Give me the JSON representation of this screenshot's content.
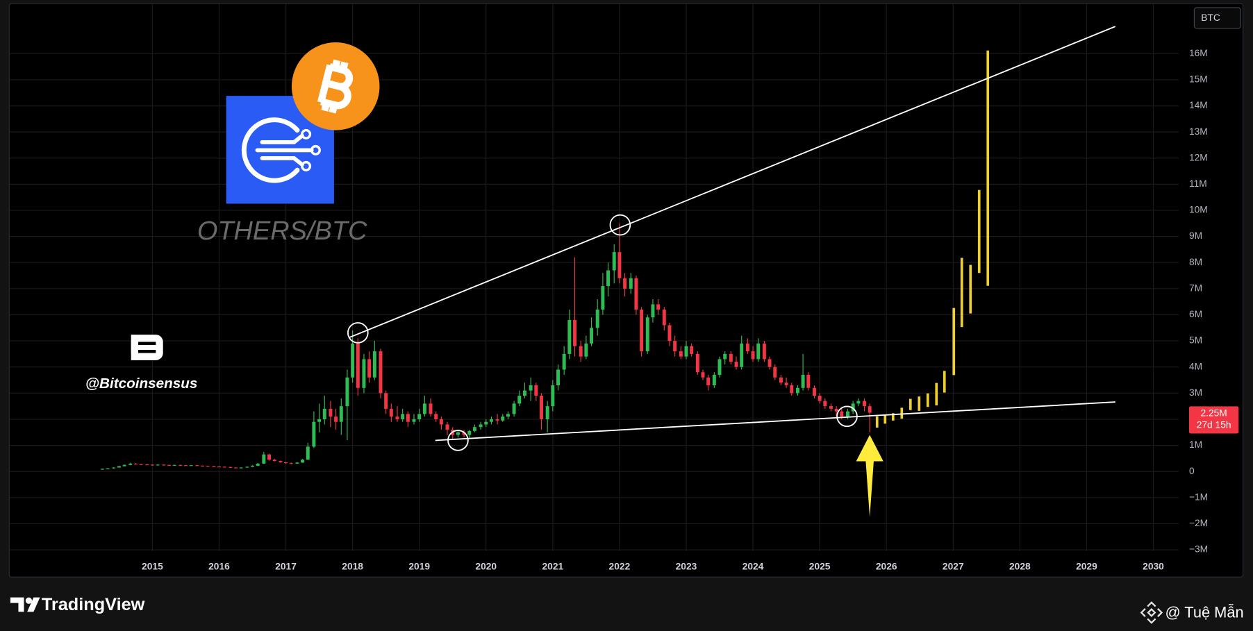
{
  "chart_data": {
    "type": "candlestick",
    "watermark": "OTHERS/BTC",
    "symbol": "BTC",
    "xlim": [
      2012.86,
      2030.38
    ],
    "xticks": [
      2015,
      2016,
      2017,
      2018,
      2019,
      2020,
      2021,
      2022,
      2023,
      2024,
      2025,
      2026,
      2027,
      2028,
      2029,
      2030
    ],
    "ylim": [
      -3050000,
      17900000
    ],
    "yticks": [
      {
        "value": -3000000,
        "label": "−3M"
      },
      {
        "value": -2000000,
        "label": "−2M"
      },
      {
        "value": -1000000,
        "label": "−1M"
      },
      0,
      {
        "value": 1000000,
        "label": "1M"
      },
      {
        "value": 2000000,
        "label": "2M"
      },
      {
        "value": 3000000,
        "label": "3M"
      },
      {
        "value": 4000000,
        "label": "4M"
      },
      {
        "value": 5000000,
        "label": "5M"
      },
      {
        "value": 6000000,
        "label": "6M"
      },
      {
        "value": 7000000,
        "label": "7M"
      },
      {
        "value": 8000000,
        "label": "8M"
      },
      {
        "value": 9000000,
        "label": "9M"
      },
      {
        "value": 10000000,
        "label": "10M"
      },
      {
        "value": 11000000,
        "label": "11M"
      },
      {
        "value": 12000000,
        "label": "12M"
      },
      {
        "value": 13000000,
        "label": "13M"
      },
      {
        "value": 14000000,
        "label": "14M"
      },
      {
        "value": 15000000,
        "label": "15M"
      },
      {
        "value": 16000000,
        "label": "16M"
      }
    ],
    "grid": true,
    "up_color": "#2ebd55",
    "down_color": "#f23645",
    "x": [
      2014.25,
      2014.33,
      2014.42,
      2014.5,
      2014.58,
      2014.67,
      2014.75,
      2014.83,
      2014.92,
      2015,
      2015.08,
      2015.17,
      2015.25,
      2015.33,
      2015.42,
      2015.5,
      2015.58,
      2015.67,
      2015.75,
      2015.83,
      2015.92,
      2016,
      2016.08,
      2016.17,
      2016.25,
      2016.33,
      2016.42,
      2016.5,
      2016.58,
      2016.67,
      2016.75,
      2016.83,
      2016.92,
      2017,
      2017.08,
      2017.17,
      2017.25,
      2017.33,
      2017.42,
      2017.5,
      2017.58,
      2017.67,
      2017.75,
      2017.83,
      2017.92,
      2018,
      2018.08,
      2018.17,
      2018.25,
      2018.33,
      2018.42,
      2018.5,
      2018.58,
      2018.67,
      2018.75,
      2018.83,
      2018.92,
      2019,
      2019.08,
      2019.17,
      2019.25,
      2019.33,
      2019.42,
      2019.5,
      2019.58,
      2019.67,
      2019.75,
      2019.83,
      2019.92,
      2020,
      2020.08,
      2020.17,
      2020.25,
      2020.33,
      2020.42,
      2020.5,
      2020.58,
      2020.67,
      2020.75,
      2020.83,
      2020.92,
      2021,
      2021.08,
      2021.17,
      2021.25,
      2021.33,
      2021.42,
      2021.5,
      2021.58,
      2021.67,
      2021.75,
      2021.83,
      2021.92,
      2022,
      2022.08,
      2022.17,
      2022.25,
      2022.33,
      2022.42,
      2022.5,
      2022.58,
      2022.67,
      2022.75,
      2022.83,
      2022.92,
      2023,
      2023.08,
      2023.17,
      2023.25,
      2023.33,
      2023.42,
      2023.5,
      2023.58,
      2023.67,
      2023.75,
      2023.83,
      2023.92,
      2024,
      2024.08,
      2024.17,
      2024.25,
      2024.33,
      2024.42,
      2024.5,
      2024.58,
      2024.67,
      2024.75,
      2024.83,
      2024.92,
      2025,
      2025.08,
      2025.17,
      2025.25,
      2025.33,
      2025.42,
      2025.5,
      2025.58,
      2025.67,
      2025.75
    ],
    "ohlc": [
      [
        90000,
        110000,
        80000,
        100000
      ],
      [
        100000,
        130000,
        90000,
        120000
      ],
      [
        120000,
        160000,
        110000,
        150000
      ],
      [
        150000,
        220000,
        140000,
        200000
      ],
      [
        200000,
        270000,
        190000,
        250000
      ],
      [
        250000,
        330000,
        240000,
        300000
      ],
      [
        300000,
        320000,
        260000,
        280000
      ],
      [
        280000,
        290000,
        250000,
        270000
      ],
      [
        270000,
        280000,
        240000,
        260000
      ],
      [
        260000,
        270000,
        230000,
        250000
      ],
      [
        250000,
        280000,
        240000,
        260000
      ],
      [
        260000,
        270000,
        240000,
        250000
      ],
      [
        250000,
        260000,
        230000,
        240000
      ],
      [
        240000,
        260000,
        230000,
        250000
      ],
      [
        250000,
        260000,
        230000,
        240000
      ],
      [
        240000,
        250000,
        220000,
        230000
      ],
      [
        230000,
        250000,
        220000,
        240000
      ],
      [
        240000,
        250000,
        210000,
        220000
      ],
      [
        220000,
        230000,
        200000,
        210000
      ],
      [
        210000,
        220000,
        190000,
        200000
      ],
      [
        200000,
        210000,
        180000,
        190000
      ],
      [
        190000,
        200000,
        170000,
        180000
      ],
      [
        180000,
        190000,
        160000,
        170000
      ],
      [
        170000,
        180000,
        140000,
        150000
      ],
      [
        150000,
        160000,
        130000,
        140000
      ],
      [
        140000,
        160000,
        130000,
        150000
      ],
      [
        150000,
        190000,
        140000,
        180000
      ],
      [
        180000,
        240000,
        170000,
        220000
      ],
      [
        220000,
        330000,
        210000,
        300000
      ],
      [
        300000,
        750000,
        290000,
        650000
      ],
      [
        650000,
        680000,
        420000,
        450000
      ],
      [
        450000,
        480000,
        380000,
        400000
      ],
      [
        400000,
        420000,
        330000,
        350000
      ],
      [
        350000,
        370000,
        300000,
        320000
      ],
      [
        320000,
        340000,
        280000,
        300000
      ],
      [
        300000,
        360000,
        290000,
        340000
      ],
      [
        340000,
        480000,
        330000,
        450000
      ],
      [
        450000,
        1100000,
        440000,
        950000
      ],
      [
        950000,
        2300000,
        900000,
        1900000
      ],
      [
        1900000,
        2600000,
        1500000,
        2000000
      ],
      [
        2000000,
        2900000,
        1800000,
        2400000
      ],
      [
        2400000,
        2700000,
        1700000,
        2100000
      ],
      [
        2100000,
        2400000,
        1600000,
        1900000
      ],
      [
        1900000,
        2800000,
        1400000,
        2500000
      ],
      [
        2500000,
        3900000,
        1200000,
        3600000
      ],
      [
        3600000,
        5400000,
        3400000,
        4900000
      ],
      [
        4900000,
        5100000,
        2900000,
        3200000
      ],
      [
        3200000,
        4500000,
        3000000,
        4300000
      ],
      [
        4300000,
        4600000,
        3400000,
        3600000
      ],
      [
        3600000,
        5000000,
        3500000,
        4600000
      ],
      [
        4600000,
        4700000,
        2800000,
        3000000
      ],
      [
        3000000,
        3100000,
        2200000,
        2400000
      ],
      [
        2400000,
        2600000,
        1900000,
        2100000
      ],
      [
        2100000,
        2500000,
        1900000,
        2000000
      ],
      [
        2000000,
        2400000,
        1900000,
        2200000
      ],
      [
        2200000,
        2300000,
        1700000,
        1900000
      ],
      [
        1900000,
        2200000,
        1800000,
        2000000
      ],
      [
        2000000,
        2400000,
        1900000,
        2200000
      ],
      [
        2200000,
        2900000,
        2100000,
        2600000
      ],
      [
        2600000,
        2800000,
        2100000,
        2200000
      ],
      [
        2200000,
        2300000,
        1900000,
        2000000
      ],
      [
        2000000,
        2100000,
        1600000,
        1800000
      ],
      [
        1800000,
        1900000,
        1400000,
        1600000
      ],
      [
        1600000,
        1700000,
        1200000,
        1400000
      ],
      [
        1400000,
        1600000,
        1300000,
        1500000
      ],
      [
        1500000,
        1600000,
        1300000,
        1400000
      ],
      [
        1400000,
        1600000,
        1300000,
        1550000
      ],
      [
        1550000,
        1800000,
        1500000,
        1700000
      ],
      [
        1700000,
        1900000,
        1600000,
        1800000
      ],
      [
        1800000,
        2000000,
        1700000,
        1900000
      ],
      [
        1900000,
        2100000,
        1800000,
        2000000
      ],
      [
        2000000,
        2200000,
        1800000,
        1950000
      ],
      [
        1950000,
        2200000,
        1900000,
        2100000
      ],
      [
        2100000,
        2300000,
        2000000,
        2200000
      ],
      [
        2200000,
        2700000,
        2100000,
        2600000
      ],
      [
        2600000,
        3100000,
        2500000,
        2900000
      ],
      [
        2900000,
        3400000,
        2800000,
        3100000
      ],
      [
        3100000,
        3600000,
        2700000,
        3300000
      ],
      [
        3300000,
        3400000,
        2700000,
        2900000
      ],
      [
        2900000,
        3000000,
        1600000,
        2000000
      ],
      [
        2000000,
        2700000,
        1500000,
        2500000
      ],
      [
        2500000,
        3500000,
        2300000,
        3300000
      ],
      [
        3300000,
        4100000,
        3100000,
        3900000
      ],
      [
        3900000,
        4800000,
        3700000,
        4500000
      ],
      [
        4500000,
        6200000,
        4300000,
        5800000
      ],
      [
        5800000,
        8200000,
        4400000,
        4800000
      ],
      [
        4800000,
        5000000,
        4200000,
        4400000
      ],
      [
        4400000,
        5200000,
        4300000,
        4900000
      ],
      [
        4900000,
        5900000,
        4800000,
        5500000
      ],
      [
        5500000,
        6600000,
        5200000,
        6200000
      ],
      [
        6200000,
        7600000,
        6000000,
        7100000
      ],
      [
        7100000,
        8000000,
        6700000,
        7700000
      ],
      [
        7700000,
        8700000,
        7200000,
        8400000
      ],
      [
        8400000,
        9500000,
        7200000,
        7400000
      ],
      [
        7400000,
        7600000,
        6700000,
        7000000
      ],
      [
        7000000,
        7600000,
        6800000,
        7400000
      ],
      [
        7400000,
        7500000,
        6000000,
        6200000
      ],
      [
        6200000,
        6300000,
        4400000,
        4600000
      ],
      [
        4600000,
        6000000,
        4500000,
        5900000
      ],
      [
        5900000,
        6600000,
        5700000,
        6400000
      ],
      [
        6400000,
        6600000,
        6000000,
        6200000
      ],
      [
        6200000,
        6300000,
        5400000,
        5600000
      ],
      [
        5600000,
        5700000,
        4800000,
        5000000
      ],
      [
        5000000,
        5200000,
        4400000,
        4600000
      ],
      [
        4600000,
        4800000,
        4300000,
        4400000
      ],
      [
        4400000,
        5000000,
        4300000,
        4800000
      ],
      [
        4800000,
        4900000,
        4400000,
        4500000
      ],
      [
        4500000,
        4600000,
        3700000,
        3800000
      ],
      [
        3800000,
        3900000,
        3500000,
        3600000
      ],
      [
        3600000,
        3700000,
        3100000,
        3300000
      ],
      [
        3300000,
        3800000,
        3200000,
        3700000
      ],
      [
        3700000,
        4400000,
        3600000,
        4300000
      ],
      [
        4300000,
        4600000,
        4100000,
        4500000
      ],
      [
        4500000,
        4600000,
        4100000,
        4200000
      ],
      [
        4200000,
        4400000,
        3900000,
        4000000
      ],
      [
        4000000,
        5200000,
        3900000,
        4900000
      ],
      [
        4900000,
        5100000,
        4500000,
        4600000
      ],
      [
        4600000,
        4800000,
        4200000,
        4300000
      ],
      [
        4300000,
        5100000,
        4200000,
        4900000
      ],
      [
        4900000,
        5000000,
        4200000,
        4300000
      ],
      [
        4300000,
        4400000,
        3900000,
        4000000
      ],
      [
        4000000,
        4100000,
        3500000,
        3600000
      ],
      [
        3600000,
        3700000,
        3300000,
        3400000
      ],
      [
        3400000,
        3600000,
        3200000,
        3300000
      ],
      [
        3300000,
        3400000,
        2900000,
        3000000
      ],
      [
        3000000,
        3300000,
        2900000,
        3200000
      ],
      [
        3200000,
        4500000,
        3100000,
        3700000
      ],
      [
        3700000,
        3800000,
        3100000,
        3200000
      ],
      [
        3200000,
        3300000,
        2800000,
        2900000
      ],
      [
        2900000,
        3000000,
        2600000,
        2700000
      ],
      [
        2700000,
        2800000,
        2400000,
        2500000
      ],
      [
        2500000,
        2600000,
        2300000,
        2400000
      ],
      [
        2400000,
        2500000,
        2100000,
        2300000
      ],
      [
        2300000,
        2400000,
        2000000,
        2100000
      ],
      [
        2100000,
        2400000,
        2000000,
        2300000
      ],
      [
        2300000,
        2700000,
        2200000,
        2600000
      ],
      [
        2600000,
        2800000,
        2500000,
        2700000
      ],
      [
        2700000,
        2800000,
        2300000,
        2500000
      ],
      [
        2500000,
        2600000,
        1500000,
        2250000
      ]
    ],
    "projection": {
      "color": "#f0d02e",
      "x": [
        2025.86,
        2025.98,
        2026.1,
        2026.23,
        2026.36,
        2026.49,
        2026.62,
        2026.75,
        2026.87,
        2027.01,
        2027.13,
        2027.26,
        2027.39,
        2027.52
      ],
      "high": [
        2110000,
        2170000,
        2230000,
        2440000,
        2780000,
        2870000,
        2990000,
        3390000,
        3850000,
        6260000,
        8180000,
        7910000,
        10780000,
        16120000
      ],
      "low": [
        1680000,
        1830000,
        1950000,
        2020000,
        2350000,
        2320000,
        2470000,
        2530000,
        3020000,
        3690000,
        5530000,
        6050000,
        7600000,
        7110000
      ]
    },
    "trendlines": [
      {
        "color": "#ffffff",
        "x": [
          2017.95,
          2029.43
        ],
        "y": [
          5130000,
          17040000
        ]
      },
      {
        "color": "#ffffff",
        "x": [
          2019.24,
          2029.43
        ],
        "y": [
          1190000,
          2660000
        ]
      }
    ],
    "highlights": {
      "x": [
        2018.08,
        2022.01,
        2019.58,
        2025.41
      ],
      "y": [
        5310000,
        9440000,
        1190000,
        2110000
      ]
    },
    "arrow": {
      "color": "#ffeb3b",
      "x": 2025.75,
      "y_tip": 1400000,
      "y_tail": -1750000
    },
    "last_price": {
      "value": 2250000,
      "label": "2.25M",
      "countdown": "27d 15h"
    }
  },
  "branding": {
    "handle": "@Bitcoinsensus",
    "platform": "TradingView",
    "author": "@ Tuệ Mẫn"
  }
}
